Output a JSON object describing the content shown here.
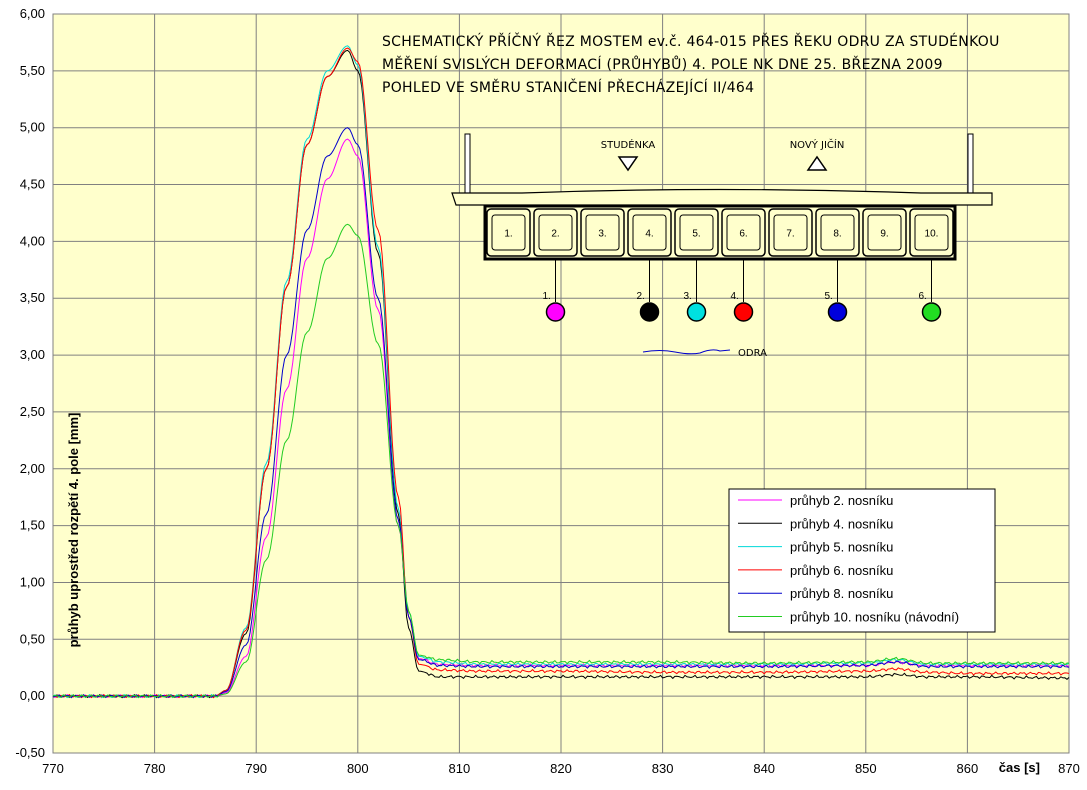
{
  "chart_data": {
    "type": "line",
    "title": [
      "SCHEMATICKÝ PŘÍČNÝ ŘEZ MOSTEM ev.č. 464-015 PŘES ŘEKU ODRU ZA STUDÉNKOU",
      "MĚŘENÍ SVISLÝCH DEFORMACÍ (PRŮHYBŮ) 4. POLE NK DNE 25. BŘEZNA 2009",
      "POHLED VE SMĚRU STANIČENÍ PŘECHÁZEJÍCÍ II/464"
    ],
    "xlabel": "čas [s]",
    "ylabel": "průhyb uprostřed rozpětí 4. pole [mm]",
    "xlim": [
      770,
      870
    ],
    "ylim": [
      -0.5,
      6.0
    ],
    "xticks": [
      "770",
      "780",
      "790",
      "800",
      "810",
      "820",
      "830",
      "840",
      "850",
      "860",
      "870"
    ],
    "yticks": [
      "-0,50",
      "0,00",
      "0,50",
      "1,00",
      "1,50",
      "2,00",
      "2,50",
      "3,00",
      "3,50",
      "4,00",
      "4,50",
      "5,00",
      "5,50",
      "6,00"
    ],
    "grid": true,
    "legend_position": "right",
    "series": [
      {
        "name": "průhyb 2. nosníku",
        "color": "#ff00ff",
        "x": [
          770,
          786,
          787,
          789,
          791,
          793,
          795,
          797,
          799,
          800,
          802,
          804,
          805,
          806,
          808,
          812,
          820,
          830,
          840,
          850,
          853,
          856,
          860,
          870
        ],
        "y": [
          0,
          0,
          0.03,
          0.35,
          1.4,
          2.7,
          3.85,
          4.55,
          4.9,
          4.75,
          3.4,
          1.5,
          0.7,
          0.33,
          0.28,
          0.27,
          0.27,
          0.27,
          0.27,
          0.27,
          0.3,
          0.27,
          0.27,
          0.27
        ]
      },
      {
        "name": "průhyb 4. nosníku",
        "color": "#000000",
        "x": [
          770,
          786,
          787,
          789,
          791,
          793,
          795,
          797,
          799,
          800,
          802,
          804,
          805,
          806,
          808,
          812,
          820,
          830,
          840,
          850,
          853,
          856,
          860,
          870
        ],
        "y": [
          0,
          0,
          0.05,
          0.55,
          2.0,
          3.6,
          4.85,
          5.45,
          5.68,
          5.5,
          3.9,
          1.6,
          0.6,
          0.22,
          0.17,
          0.17,
          0.17,
          0.17,
          0.17,
          0.17,
          0.19,
          0.17,
          0.17,
          0.16
        ]
      },
      {
        "name": "průhyb 5. nosníku",
        "color": "#00d8d8",
        "x": [
          770,
          786,
          787,
          789,
          791,
          793,
          795,
          797,
          799,
          800,
          802,
          804,
          805,
          806,
          808,
          812,
          820,
          830,
          840,
          850,
          853,
          856,
          860,
          870
        ],
        "y": [
          0,
          0,
          0.05,
          0.6,
          2.05,
          3.65,
          4.9,
          5.5,
          5.72,
          5.55,
          3.95,
          1.65,
          0.75,
          0.35,
          0.3,
          0.28,
          0.28,
          0.28,
          0.28,
          0.29,
          0.32,
          0.28,
          0.28,
          0.28
        ]
      },
      {
        "name": "průhyb 6. nosníku",
        "color": "#ff0000",
        "x": [
          770,
          786,
          787,
          789,
          791,
          793,
          795,
          797,
          799,
          800,
          802,
          804,
          805,
          806,
          808,
          812,
          820,
          830,
          840,
          850,
          853,
          856,
          860,
          870
        ],
        "y": [
          0,
          0,
          0.05,
          0.58,
          2.0,
          3.6,
          4.85,
          5.45,
          5.7,
          5.58,
          4.1,
          1.75,
          0.7,
          0.28,
          0.23,
          0.22,
          0.22,
          0.21,
          0.21,
          0.22,
          0.24,
          0.21,
          0.2,
          0.2
        ]
      },
      {
        "name": "průhyb 8. nosníku",
        "color": "#0000cc",
        "x": [
          770,
          786,
          787,
          789,
          791,
          793,
          795,
          797,
          799,
          800,
          802,
          804,
          805,
          806,
          808,
          812,
          820,
          830,
          840,
          850,
          853,
          856,
          860,
          870
        ],
        "y": [
          0,
          0,
          0.04,
          0.45,
          1.6,
          3.0,
          4.1,
          4.75,
          5.0,
          4.85,
          3.5,
          1.55,
          0.7,
          0.32,
          0.27,
          0.26,
          0.26,
          0.26,
          0.26,
          0.27,
          0.3,
          0.26,
          0.26,
          0.26
        ]
      },
      {
        "name": "průhyb 10. nosníku (návodní)",
        "color": "#22cc22",
        "x": [
          770,
          786,
          787,
          789,
          791,
          793,
          795,
          797,
          799,
          800,
          802,
          804,
          805,
          806,
          808,
          812,
          820,
          830,
          840,
          850,
          853,
          856,
          860,
          870
        ],
        "y": [
          0,
          0,
          0.02,
          0.3,
          1.2,
          2.25,
          3.2,
          3.85,
          4.15,
          4.05,
          3.1,
          1.5,
          0.75,
          0.36,
          0.32,
          0.3,
          0.3,
          0.3,
          0.29,
          0.3,
          0.33,
          0.29,
          0.29,
          0.29
        ]
      }
    ]
  },
  "diagram": {
    "direction_left": "STUDÉNKA",
    "direction_right": "NOVÝ JIČÍN",
    "beams": [
      "1.",
      "2.",
      "3.",
      "4.",
      "5.",
      "6.",
      "7.",
      "8.",
      "9.",
      "10."
    ],
    "sensors": [
      {
        "label": "1.",
        "beam": 2,
        "color": "#ff00ff"
      },
      {
        "label": "2.",
        "beam": 4,
        "color": "#000000"
      },
      {
        "label": "3.",
        "beam": 5,
        "color": "#00e0e0"
      },
      {
        "label": "4.",
        "beam": 6,
        "color": "#ff0000"
      },
      {
        "label": "5.",
        "beam": 8,
        "color": "#0000dd"
      },
      {
        "label": "6.",
        "beam": 10,
        "color": "#22dd22"
      }
    ],
    "river": "ODRA"
  }
}
